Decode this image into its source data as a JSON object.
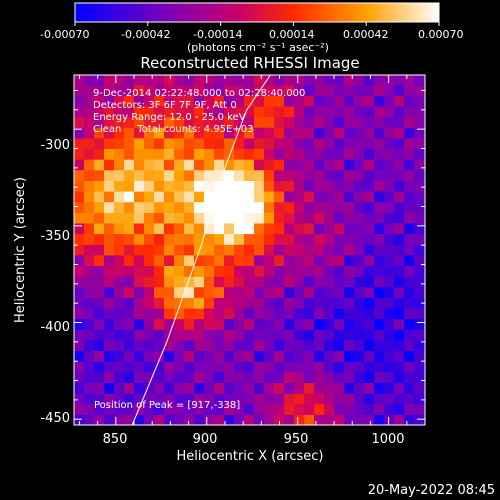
{
  "colorbar": {
    "ticks": [
      "-0.00070",
      "-0.00042",
      "-0.00014",
      "0.00014",
      "0.00042",
      "0.00070"
    ],
    "values": [
      -0.0007,
      -0.00042,
      -0.00014,
      0.00014,
      0.00042,
      0.0007
    ],
    "range": [
      -0.0007,
      0.0007
    ],
    "unit_label": "(photons cm⁻² s⁻¹ asec⁻²)"
  },
  "chart_data": {
    "type": "heatmap",
    "title": "Reconstructed RHESSI Image",
    "xlabel": "Heliocentric X (arcsec)",
    "ylabel": "Heliocentric Y (arcsec)",
    "xlim": [
      827,
      1020
    ],
    "ylim": [
      -453,
      -272
    ],
    "xticks": [
      850,
      900,
      950,
      1000
    ],
    "yticks": [
      -300,
      -350,
      -400,
      -450
    ],
    "annotations": [
      "9-Dec-2014 02:22:48.000 to 02:28:40.000",
      "Detectors: 3F 6F 7F 9F, Att 0",
      "Energy Range: 12.0 - 25.0 keV",
      "Clean     Total counts: 4.95E+03"
    ],
    "peak_label": "Position of Peak = [917,-338]",
    "peak": {
      "x": 917,
      "y": -338
    },
    "limb_curve": {
      "x": [
        859,
        878,
        897,
        910,
        922,
        935
      ],
      "y": [
        -453,
        -410,
        -360,
        -320,
        -290,
        -272
      ]
    },
    "colors": {
      "low": "#0000ff",
      "mid_low": "#8000a0",
      "mid": "#c00000",
      "mid_high": "#ff8000",
      "high": "#ffffff"
    }
  },
  "footer": {
    "date": "20-May-2022 08:45"
  }
}
